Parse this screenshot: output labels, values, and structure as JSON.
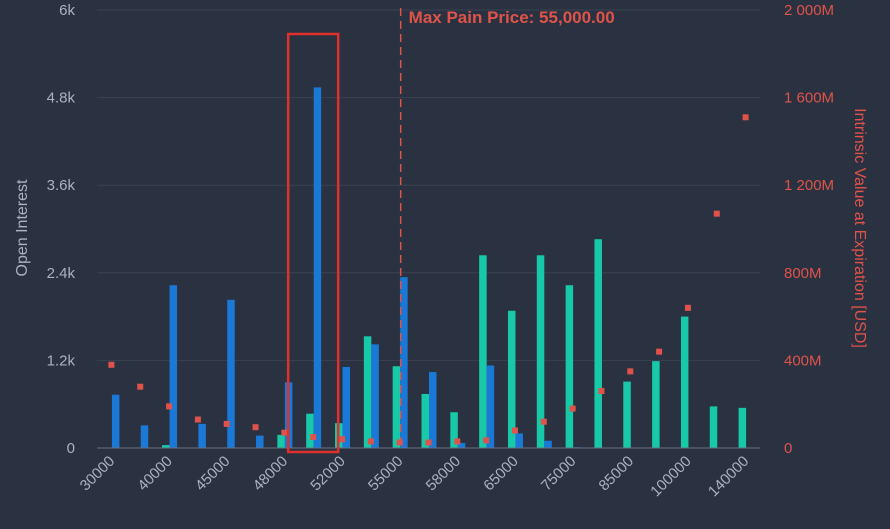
{
  "chart_data": {
    "type": "bar",
    "categories": [
      "30000",
      "",
      "40000",
      "",
      "45000",
      "",
      "48000",
      "",
      "52000",
      "",
      "55000",
      "",
      "58000",
      "",
      "65000",
      "",
      "75000",
      "",
      "85000",
      "",
      "100000",
      "",
      "140000"
    ],
    "series": [
      {
        "name": "",
        "color": "#18c9a8",
        "values": [
          0,
          0,
          40,
          0,
          0,
          0,
          180,
          470,
          340,
          1530,
          1120,
          740,
          490,
          2640,
          1880,
          2640,
          2230,
          2860,
          910,
          1190,
          1800,
          570,
          550
        ]
      },
      {
        "name": "",
        "color": "#1a78d6",
        "values": [
          730,
          310,
          2230,
          330,
          2030,
          170,
          900,
          4940,
          1110,
          1420,
          2340,
          1040,
          70,
          1130,
          200,
          100,
          10,
          0,
          0,
          0,
          0,
          0,
          0
        ]
      },
      {
        "name": "",
        "color": "#e0534a",
        "marker": "square",
        "axis": "right",
        "values": [
          380,
          280,
          190,
          130,
          110,
          95,
          70,
          50,
          40,
          30,
          25,
          25,
          30,
          35,
          80,
          120,
          180,
          260,
          350,
          440,
          640,
          1070,
          1510
        ]
      }
    ],
    "ylabel": "Open Interest",
    "ylabel_right": "Intrinsic Value at Expiration [USD]",
    "ylim": [
      0,
      6000
    ],
    "ylim_right": [
      0,
      2000
    ],
    "yticks": [
      "0",
      "1.2k",
      "2.4k",
      "3.6k",
      "4.8k",
      "6k"
    ],
    "yticks_right": [
      "0",
      "400M",
      "800M",
      "1 200M",
      "1 600M",
      "2 000M"
    ],
    "max_pain": {
      "label": "Max Pain Price: 55,000.00",
      "category_index": 10
    },
    "highlight": {
      "category_index": 7,
      "color": "#e0302c"
    },
    "grid": true,
    "colors": {
      "background": "#2a3140",
      "grid": "#3a4252",
      "tick": "#aab2bf",
      "right": "#e0534a"
    }
  }
}
